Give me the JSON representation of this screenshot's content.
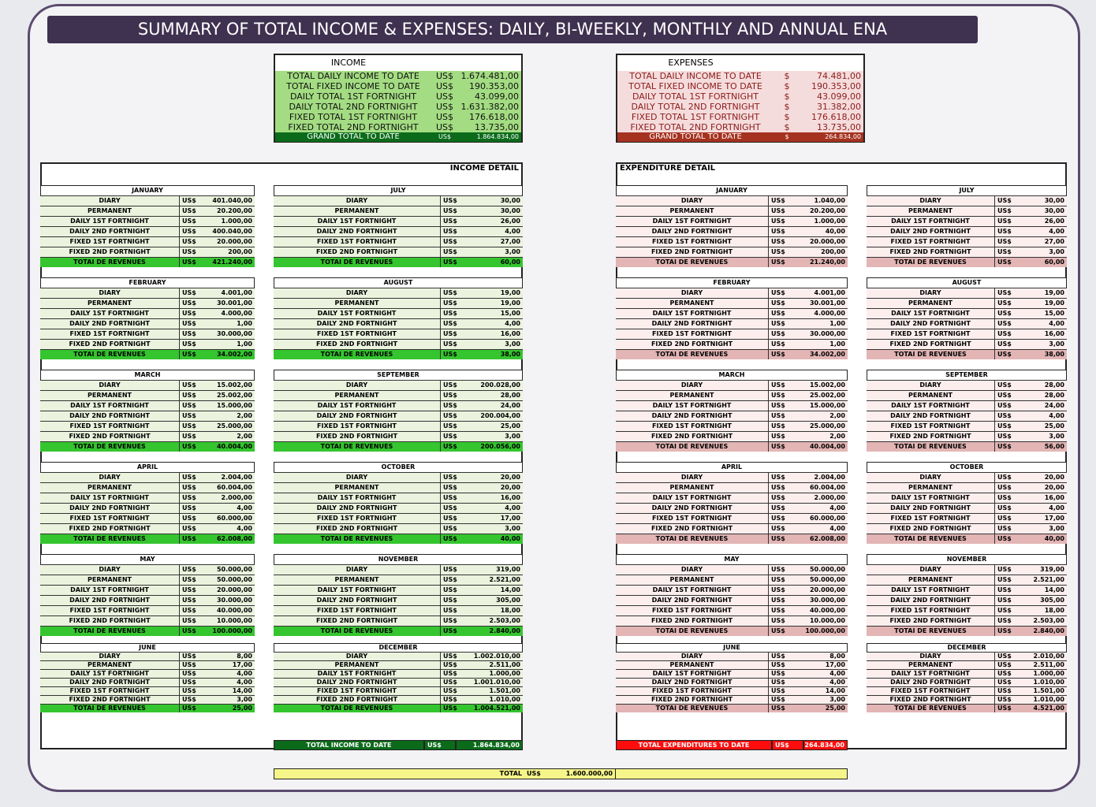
{
  "title": "SUMMARY OF TOTAL INCOME & EXPENSES: DAILY, BI-WEEKLY, MONTHLY AND ANNUAL ENA",
  "income_summary": {
    "heading": "INCOME",
    "rows": [
      {
        "label": "TOTAL DAILY INCOME TO DATE",
        "currency": "US$",
        "value": "1.674.481,00"
      },
      {
        "label": "TOTAL FIXED INCOME TO DATE",
        "currency": "US$",
        "value": "190.353,00"
      },
      {
        "label": "DAILY TOTAL 1ST FORTNIGHT",
        "currency": "US$",
        "value": "43.099,00"
      },
      {
        "label": "DAILY TOTAL 2ND FORTNIGHT",
        "currency": "US$",
        "value": "1.631.382,00"
      },
      {
        "label": "FIXED TOTAL 1ST FORTNIGHT",
        "currency": "US$",
        "value": "176.618,00"
      },
      {
        "label": "FIXED TOTAL 2ND FORTNIGHT",
        "currency": "US$",
        "value": "13.735,00"
      }
    ],
    "grand_total": {
      "label": "GRAND TOTAL TO DATE",
      "currency": "US$",
      "value": "1.864.834,00"
    }
  },
  "expense_summary": {
    "heading": "EXPENSES",
    "rows": [
      {
        "label": "TOTAL DAILY INCOME TO DATE",
        "currency": "$",
        "value": "74.481,00"
      },
      {
        "label": "TOTAL FIXED INCOME TO DATE",
        "currency": "$",
        "value": "190.353,00"
      },
      {
        "label": "DAILY TOTAL 1ST FORTNIGHT",
        "currency": "$",
        "value": "43.099,00"
      },
      {
        "label": "DAILY TOTAL 2ND FORTNIGHT",
        "currency": "$",
        "value": "31.382,00"
      },
      {
        "label": "FIXED TOTAL 1ST FORTNIGHT",
        "currency": "$",
        "value": "176.618,00"
      },
      {
        "label": "FIXED TOTAL 2ND FORTNIGHT",
        "currency": "$",
        "value": "13.735,00"
      }
    ],
    "grand_total": {
      "label": "GRAND TOTAL TO DATE",
      "currency": "$",
      "value": "264.834,00"
    }
  },
  "income_detail": {
    "heading": "INCOME DETAIL",
    "currency": "US$",
    "row_labels": [
      "DIARY",
      "PERMANENT",
      "DAILY 1ST FORTNIGHT",
      "DAILY 2ND FORTNIGHT",
      "FIXED 1ST FORTNIGHT",
      "FIXED 2ND FORTNIGHT",
      "TOTAI DE REVENUES"
    ],
    "months": [
      {
        "name": "JANUARY",
        "values": [
          "401.040,00",
          "20.200,00",
          "1.000,00",
          "400.040,00",
          "20.000,00",
          "200,00",
          "421.240,00"
        ]
      },
      {
        "name": "FEBRUARY",
        "values": [
          "4.001,00",
          "30.001,00",
          "4.000,00",
          "1,00",
          "30.000,00",
          "1,00",
          "34.002,00"
        ]
      },
      {
        "name": "MARCH",
        "values": [
          "15.002,00",
          "25.002,00",
          "15.000,00",
          "2,00",
          "25.000,00",
          "2,00",
          "40.004,00"
        ]
      },
      {
        "name": "APRIL",
        "values": [
          "2.004,00",
          "60.004,00",
          "2.000,00",
          "4,00",
          "60.000,00",
          "4,00",
          "62.008,00"
        ]
      },
      {
        "name": "MAY",
        "values": [
          "50.000,00",
          "50.000,00",
          "20.000,00",
          "30.000,00",
          "40.000,00",
          "10.000,00",
          "100.000,00"
        ]
      },
      {
        "name": "JUNE",
        "values": [
          "8,00",
          "17,00",
          "4,00",
          "4,00",
          "14,00",
          "3,00",
          "25,00"
        ]
      },
      {
        "name": "JULY",
        "values": [
          "30,00",
          "30,00",
          "26,00",
          "4,00",
          "27,00",
          "3,00",
          "60,00"
        ]
      },
      {
        "name": "AUGUST",
        "values": [
          "19,00",
          "19,00",
          "15,00",
          "4,00",
          "16,00",
          "3,00",
          "38,00"
        ]
      },
      {
        "name": "SEPTEMBER",
        "values": [
          "200.028,00",
          "28,00",
          "24,00",
          "200.004,00",
          "25,00",
          "3,00",
          "200.056,00"
        ]
      },
      {
        "name": "OCTOBER",
        "values": [
          "20,00",
          "20,00",
          "16,00",
          "4,00",
          "17,00",
          "3,00",
          "40,00"
        ]
      },
      {
        "name": "NOVEMBER",
        "values": [
          "319,00",
          "2.521,00",
          "14,00",
          "305,00",
          "18,00",
          "2.503,00",
          "2.840,00"
        ]
      },
      {
        "name": "DECEMBER",
        "values": [
          "1.002.010,00",
          "2.511,00",
          "1.000,00",
          "1.001.010,00",
          "1.501,00",
          "1.010,00",
          "1.004.521,00"
        ]
      }
    ]
  },
  "expenditure_detail": {
    "heading": "EXPENDITURE DETAIL",
    "currency": "US$",
    "row_labels": [
      "DIARY",
      "PERMANENT",
      "DAILY 1ST FORTNIGHT",
      "DAILY 2ND FORTNIGHT",
      "FIXED 1ST FORTNIGHT",
      "FIXED 2ND FORTNIGHT",
      "TOTAI DE REVENUES"
    ],
    "months": [
      {
        "name": "JANUARY",
        "values": [
          "1.040,00",
          "20.200,00",
          "1.000,00",
          "40,00",
          "20.000,00",
          "200,00",
          "21.240,00"
        ]
      },
      {
        "name": "FEBRUARY",
        "values": [
          "4.001,00",
          "30.001,00",
          "4.000,00",
          "1,00",
          "30.000,00",
          "1,00",
          "34.002,00"
        ]
      },
      {
        "name": "MARCH",
        "values": [
          "15.002,00",
          "25.002,00",
          "15.000,00",
          "2,00",
          "25.000,00",
          "2,00",
          "40.004,00"
        ]
      },
      {
        "name": "APRIL",
        "values": [
          "2.004,00",
          "60.004,00",
          "2.000,00",
          "4,00",
          "60.000,00",
          "4,00",
          "62.008,00"
        ]
      },
      {
        "name": "MAY",
        "values": [
          "50.000,00",
          "50.000,00",
          "20.000,00",
          "30.000,00",
          "40.000,00",
          "10.000,00",
          "100.000,00"
        ]
      },
      {
        "name": "JUNE",
        "values": [
          "8,00",
          "17,00",
          "4,00",
          "4,00",
          "14,00",
          "3,00",
          "25,00"
        ]
      },
      {
        "name": "JULY",
        "values": [
          "30,00",
          "30,00",
          "26,00",
          "4,00",
          "27,00",
          "3,00",
          "60,00"
        ]
      },
      {
        "name": "AUGUST",
        "values": [
          "19,00",
          "19,00",
          "15,00",
          "4,00",
          "16,00",
          "3,00",
          "38,00"
        ]
      },
      {
        "name": "SEPTEMBER",
        "values": [
          "28,00",
          "28,00",
          "24,00",
          "4,00",
          "25,00",
          "3,00",
          "56,00"
        ]
      },
      {
        "name": "OCTOBER",
        "values": [
          "20,00",
          "20,00",
          "16,00",
          "4,00",
          "17,00",
          "3,00",
          "40,00"
        ]
      },
      {
        "name": "NOVEMBER",
        "values": [
          "319,00",
          "2.521,00",
          "14,00",
          "305,00",
          "18,00",
          "2.503,00",
          "2.840,00"
        ]
      },
      {
        "name": "DECEMBER",
        "values": [
          "2.010,00",
          "2.511,00",
          "1.000,00",
          "1.010,00",
          "1.501,00",
          "1.010,00",
          "4.521,00"
        ]
      }
    ]
  },
  "total_income": {
    "label": "TOTAL INCOME TO DATE",
    "currency": "US$",
    "value": "1.864.834,00"
  },
  "total_expenditures": {
    "label": "TOTAL EXPENDITURES TO DATE",
    "currency": "US$",
    "value": "264.834,00"
  },
  "total": {
    "label": "TOTAL",
    "currency": "US$",
    "value": "1.600.000,00"
  }
}
